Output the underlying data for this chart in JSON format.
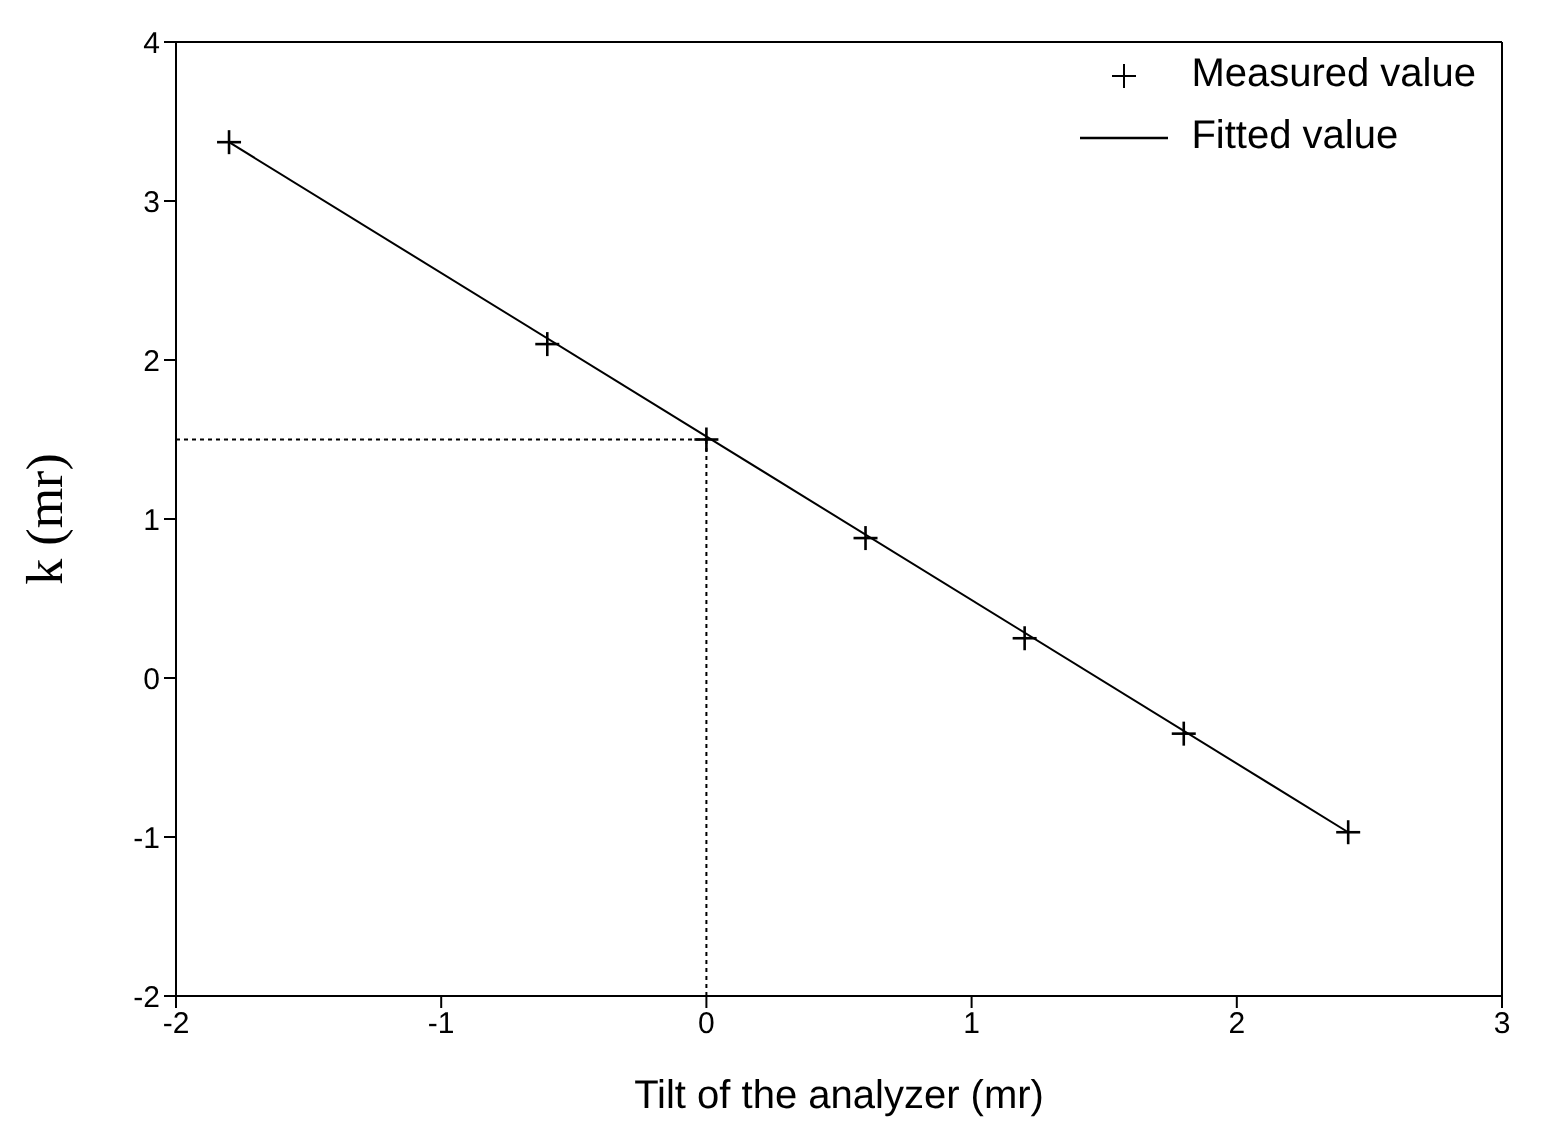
{
  "chart_data": {
    "type": "scatter",
    "xlabel": "Tilt of the analyzer (mr)",
    "ylabel": "k (mr)",
    "xlim": [
      -2,
      3
    ],
    "xticks": [
      -2,
      -1,
      0,
      1,
      2,
      3
    ],
    "ylim": [
      -2,
      4
    ],
    "yticks": [
      -2,
      -1,
      0,
      1,
      2,
      3,
      4
    ],
    "legend": "top right",
    "marker": "cross",
    "series": [
      {
        "name": "Measured value",
        "color": "#000000",
        "x": [
          -1.8,
          -0.6,
          0,
          0.6,
          1.2,
          1.8,
          2.42
        ],
        "values": [
          3.37,
          2.1,
          1.5,
          0.88,
          0.25,
          -0.35,
          -0.97
        ]
      },
      {
        "type": "line",
        "name": "Fitted value",
        "color": "#000000",
        "marker": "none",
        "line_style": "solid",
        "x": [
          -1.8,
          2.42
        ],
        "values": [
          3.37,
          -0.97
        ]
      },
      {
        "type": "line",
        "color": "#000000",
        "marker": "none",
        "line_style": "dotted",
        "x": [
          -2,
          0
        ],
        "values": [
          1.5,
          1.5
        ]
      },
      {
        "type": "line",
        "color": "#000000",
        "marker": "none",
        "line_style": "dotted",
        "x": [
          0,
          0
        ],
        "values": [
          -2,
          1.5
        ]
      }
    ]
  }
}
